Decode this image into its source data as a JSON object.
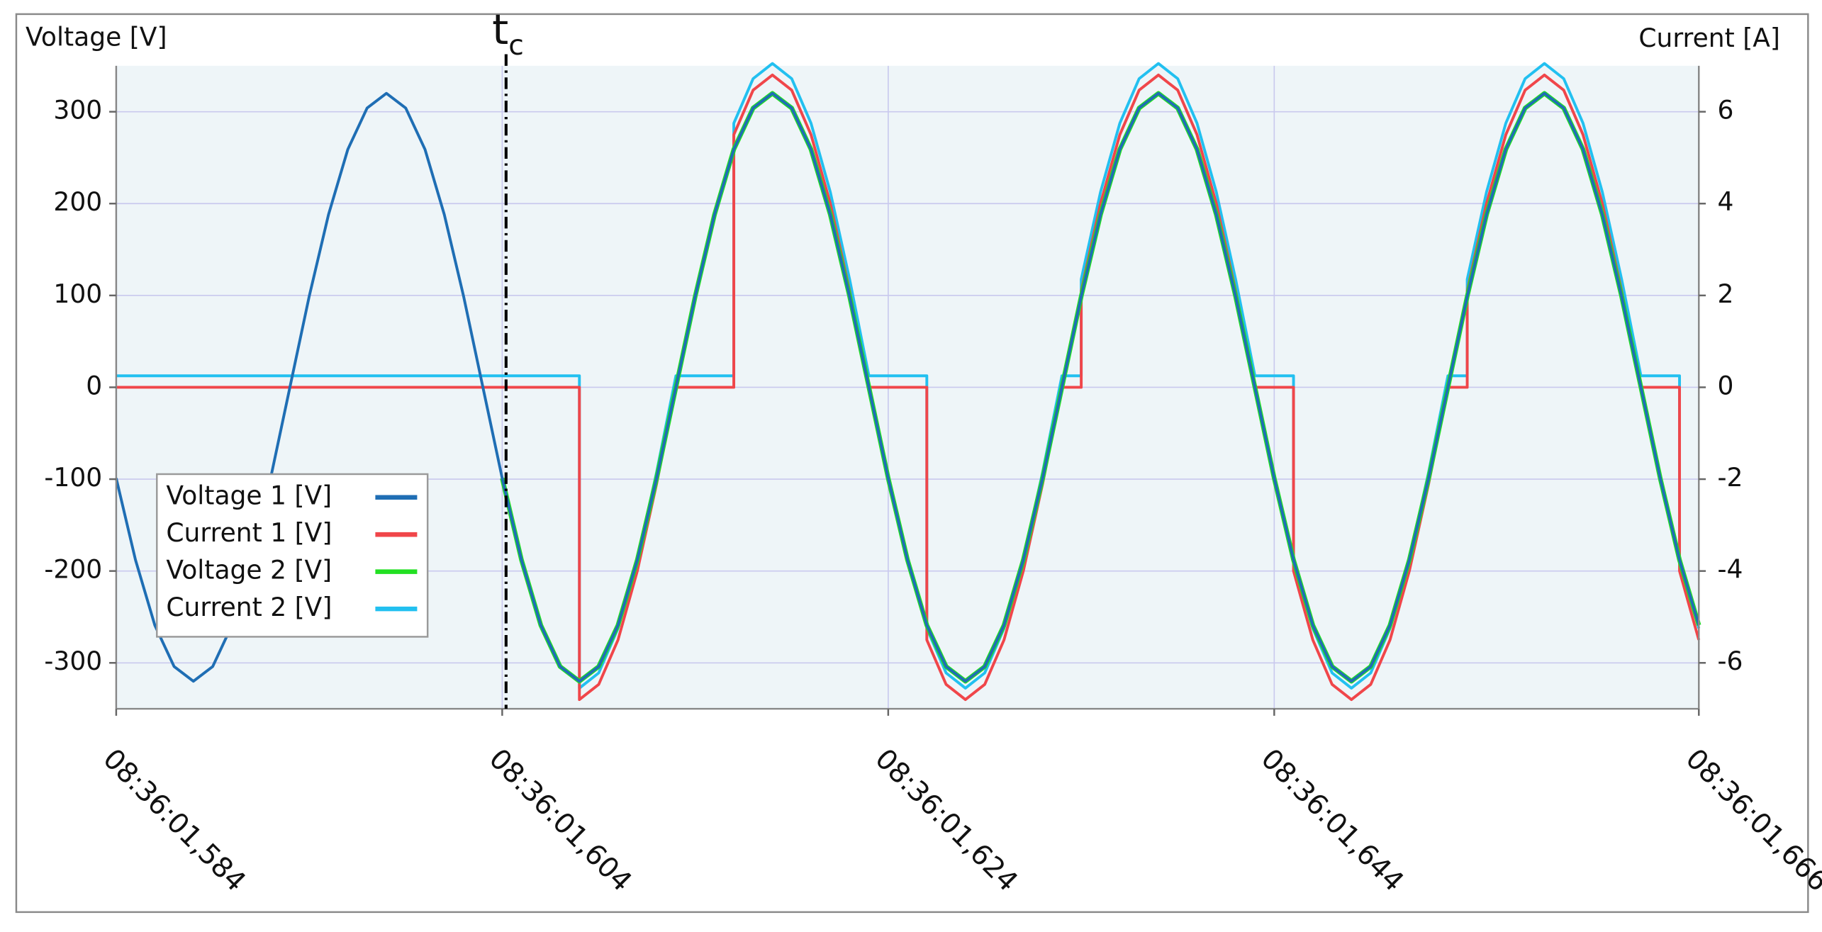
{
  "chart_data": {
    "type": "line",
    "y_label": "Voltage [V]",
    "y2_label": "Current [A]",
    "annotation": {
      "text": "t",
      "subscript": "c",
      "x": 604.2
    },
    "x": [
      584,
      585,
      586,
      587,
      588,
      589,
      590,
      591,
      592,
      593,
      594,
      595,
      596,
      597,
      598,
      599,
      600,
      601,
      602,
      603,
      604,
      605,
      606,
      607,
      608,
      608,
      609,
      610,
      611,
      612,
      613,
      614,
      615,
      616,
      616,
      617,
      618,
      619,
      620,
      621,
      622,
      623,
      624,
      625,
      626,
      626,
      627,
      628,
      629,
      630,
      631,
      632,
      633,
      634,
      634,
      635,
      636,
      637,
      638,
      639,
      640,
      641,
      642,
      643,
      644,
      645,
      645,
      646,
      647,
      648,
      649,
      650,
      651,
      652,
      653,
      654,
      654,
      655,
      656,
      657,
      658,
      659,
      660,
      661,
      662,
      663,
      664,
      665,
      665,
      666
    ],
    "xlim": [
      584,
      666
    ],
    "xticks": [
      {
        "value": 584,
        "label": "08:36:01,584"
      },
      {
        "value": 604,
        "label": "08:36:01,604"
      },
      {
        "value": 624,
        "label": "08:36:01,624"
      },
      {
        "value": 644,
        "label": "08:36:01,644"
      },
      {
        "value": 666,
        "label": "08:36:01,666"
      }
    ],
    "ylim": [
      -350,
      350
    ],
    "yticks": [
      -300,
      -200,
      -100,
      0,
      100,
      200,
      300
    ],
    "y2lim": [
      -7,
      7
    ],
    "y2ticks": [
      -6,
      -4,
      -2,
      0,
      2,
      4,
      6
    ],
    "grid": true,
    "legend": "lower left",
    "series": [
      {
        "name": "Voltage 1 [V]",
        "color": "#1f6eb4",
        "values": [
          -99,
          -188,
          -259,
          -304,
          -320,
          -304,
          -259,
          -188,
          -99,
          0,
          99,
          188,
          259,
          304,
          320,
          304,
          259,
          188,
          99,
          0,
          -99,
          -188,
          -259,
          -304,
          -320,
          -320,
          -304,
          -259,
          -188,
          -99,
          0,
          99,
          188,
          259,
          259,
          304,
          320,
          304,
          259,
          188,
          99,
          0,
          -99,
          -188,
          -259,
          -259,
          -304,
          -320,
          -304,
          -259,
          -188,
          -99,
          0,
          99,
          99,
          188,
          259,
          304,
          320,
          304,
          259,
          188,
          99,
          0,
          -99,
          -188,
          -188,
          -259,
          -304,
          -320,
          -304,
          -259,
          -188,
          -99,
          0,
          99,
          99,
          188,
          259,
          304,
          320,
          304,
          259,
          188,
          99,
          0,
          -99,
          -188,
          -188,
          -259
        ]
      },
      {
        "name": "Current 1 [V]",
        "color": "#f0464a",
        "axis": "y2",
        "values": [
          0,
          0,
          0,
          0,
          0,
          0,
          0,
          0,
          0,
          0,
          0,
          0,
          0,
          0,
          0,
          0,
          0,
          0,
          0,
          0,
          0,
          0,
          0,
          0,
          0,
          -6.8,
          -6.47,
          -5.5,
          -4,
          -2.1,
          0,
          0,
          0,
          0,
          5.5,
          6.47,
          6.8,
          6.47,
          5.5,
          4,
          2.1,
          0,
          0,
          0,
          0,
          -5.5,
          -6.47,
          -6.8,
          -6.47,
          -5.5,
          -4,
          -2.1,
          0,
          0,
          2.1,
          4,
          5.5,
          6.47,
          6.8,
          6.47,
          5.5,
          4,
          2.1,
          0,
          0,
          0,
          -4,
          -5.5,
          -6.47,
          -6.8,
          -6.47,
          -5.5,
          -4,
          -2.1,
          0,
          0,
          2.1,
          4,
          5.5,
          6.47,
          6.8,
          6.47,
          5.5,
          4,
          2.1,
          0,
          0,
          0,
          -4,
          -5.5
        ]
      },
      {
        "name": "Voltage 2 [V]",
        "color": "#22e022",
        "values": [
          null,
          null,
          null,
          null,
          null,
          null,
          null,
          null,
          null,
          null,
          null,
          null,
          null,
          null,
          null,
          null,
          null,
          null,
          null,
          null,
          -99,
          -188,
          -259,
          -304,
          -320,
          -320,
          -304,
          -259,
          -188,
          -99,
          0,
          99,
          188,
          259,
          259,
          304,
          320,
          304,
          259,
          188,
          99,
          0,
          -99,
          -188,
          -259,
          -259,
          -304,
          -320,
          -304,
          -259,
          -188,
          -99,
          0,
          99,
          99,
          188,
          259,
          304,
          320,
          304,
          259,
          188,
          99,
          0,
          -99,
          -188,
          -188,
          -259,
          -304,
          -320,
          -304,
          -259,
          -188,
          -99,
          0,
          99,
          99,
          188,
          259,
          304,
          320,
          304,
          259,
          188,
          99,
          0,
          -99,
          -188,
          -188,
          -259
        ]
      },
      {
        "name": "Current 2 [V]",
        "color": "#22c0f0",
        "axis": "y2",
        "values": [
          0.25,
          0.25,
          0.25,
          0.25,
          0.25,
          0.25,
          0.25,
          0.25,
          0.25,
          0.25,
          0.25,
          0.25,
          0.25,
          0.25,
          0.25,
          0.25,
          0.25,
          0.25,
          0.25,
          0.25,
          0.25,
          0.25,
          0.25,
          0.25,
          0.25,
          -6.55,
          -6.22,
          -5.25,
          -3.75,
          -1.85,
          0.25,
          0.25,
          0.25,
          0.25,
          5.75,
          6.72,
          7.05,
          6.72,
          5.75,
          4.25,
          2.35,
          0.25,
          0.25,
          0.25,
          0.25,
          -5.25,
          -6.22,
          -6.55,
          -6.22,
          -5.25,
          -3.75,
          -1.85,
          0.25,
          0.25,
          2.35,
          4.25,
          5.75,
          6.72,
          7.05,
          6.72,
          5.75,
          4.25,
          2.35,
          0.25,
          0.25,
          0.25,
          -3.75,
          -5.25,
          -6.22,
          -6.55,
          -6.22,
          -5.25,
          -3.75,
          -1.85,
          0.25,
          0.25,
          2.35,
          4.25,
          5.75,
          6.72,
          7.05,
          6.72,
          5.75,
          4.25,
          2.35,
          0.25,
          0.25,
          0.25,
          -3.75,
          -5.25
        ]
      }
    ]
  }
}
